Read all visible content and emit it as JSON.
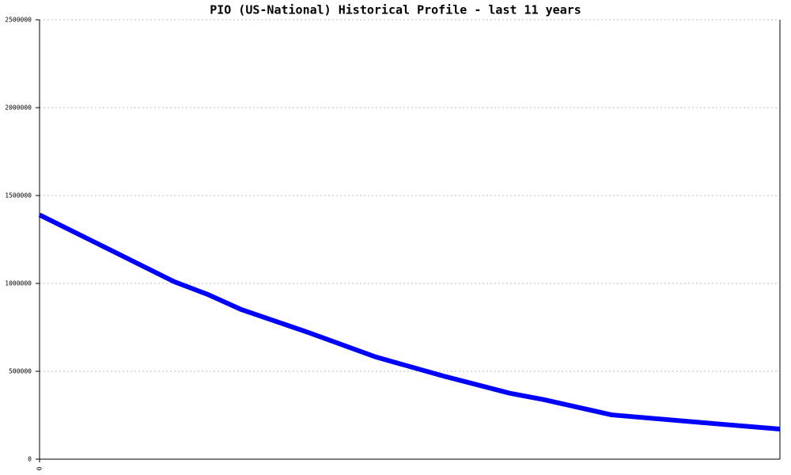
{
  "chart_data": {
    "type": "line",
    "title": "PIO (US-National) Historical Profile - last 11 years",
    "x": [
      0,
      1,
      2,
      2.5,
      3,
      4,
      5,
      6,
      7,
      7.5,
      8.5,
      10,
      11
    ],
    "series": [
      {
        "color": "#0000ff",
        "values": [
          1390000,
          1200000,
          1010000,
          937000,
          851000,
          720000,
          581000,
          473000,
          374000,
          338000,
          252000,
          203000,
          171000
        ]
      }
    ],
    "xlim": [
      0,
      11
    ],
    "xticks": [
      0
    ],
    "ylim": [
      0,
      2500000
    ],
    "yticks": [
      0,
      500000,
      1000000,
      1500000,
      2000000,
      2500000
    ],
    "grid": true
  }
}
